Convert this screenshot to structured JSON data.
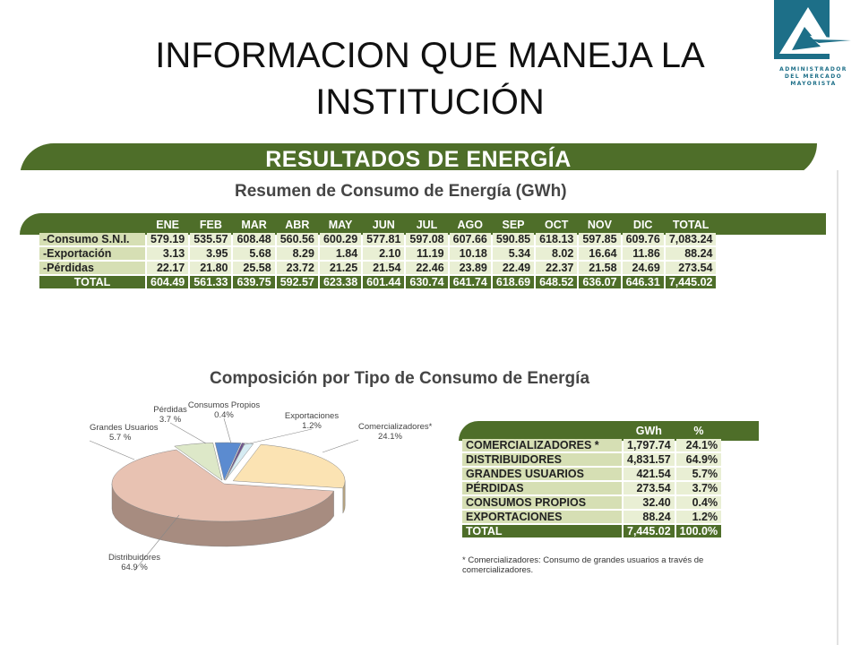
{
  "title": "INFORMACION QUE MANEJA LA INSTITUCIÓN",
  "logo": {
    "lines": [
      "ADMINISTRADOR",
      "DEL MERCADO",
      "MAYORISTA"
    ],
    "colors": {
      "primary": "#1d6f88",
      "accent": "#ffffff"
    }
  },
  "section_title": "RESULTADOS DE ENERGÍA",
  "colors": {
    "banner": "#4e6e29",
    "cell": "#e9efd4",
    "row_label": "#d6dfb4"
  },
  "monthly_table": {
    "subtitle": "Resumen de Consumo de Energía (GWh)",
    "columns": [
      "ENE",
      "FEB",
      "MAR",
      "ABR",
      "MAY",
      "JUN",
      "JUL",
      "AGO",
      "SEP",
      "OCT",
      "NOV",
      "DIC",
      "TOTAL"
    ],
    "rows": [
      {
        "label": "-Consumo S.N.I.",
        "values": [
          "579.19",
          "535.57",
          "608.48",
          "560.56",
          "600.29",
          "577.81",
          "597.08",
          "607.66",
          "590.85",
          "618.13",
          "597.85",
          "609.76",
          "7,083.24"
        ]
      },
      {
        "label": "-Exportación",
        "values": [
          "3.13",
          "3.95",
          "5.68",
          "8.29",
          "1.84",
          "2.10",
          "11.19",
          "10.18",
          "5.34",
          "8.02",
          "16.64",
          "11.86",
          "88.24"
        ]
      },
      {
        "label": "-Pérdidas",
        "values": [
          "22.17",
          "21.80",
          "25.58",
          "23.72",
          "21.25",
          "21.54",
          "22.46",
          "23.89",
          "22.49",
          "22.37",
          "21.58",
          "24.69",
          "273.54"
        ]
      },
      {
        "label": "TOTAL",
        "values": [
          "604.49",
          "561.33",
          "639.75",
          "592.57",
          "623.38",
          "601.44",
          "630.74",
          "641.74",
          "618.69",
          "648.52",
          "636.07",
          "646.31",
          "7,445.02"
        ]
      }
    ]
  },
  "composition": {
    "subtitle": "Composición por Tipo de Consumo de Energía",
    "headers": [
      "GWh",
      "%"
    ],
    "rows": [
      {
        "label": "COMERCIALIZADORES *",
        "gwh": "1,797.74",
        "pct": "24.1%"
      },
      {
        "label": "DISTRIBUIDORES",
        "gwh": "4,831.57",
        "pct": "64.9%"
      },
      {
        "label": "GRANDES USUARIOS",
        "gwh": "421.54",
        "pct": "5.7%"
      },
      {
        "label": "PÉRDIDAS",
        "gwh": "273.54",
        "pct": "3.7%"
      },
      {
        "label": "CONSUMOS PROPIOS",
        "gwh": "32.40",
        "pct": "0.4%"
      },
      {
        "label": "EXPORTACIONES",
        "gwh": "88.24",
        "pct": "1.2%"
      }
    ],
    "total": {
      "label": "TOTAL",
      "gwh": "7,445.02",
      "pct": "100.0%"
    },
    "footnote": "* Comercializadores: Consumo de grandes usuarios a través de comercializadores."
  },
  "chart_data": {
    "type": "pie",
    "title": "Composición por Tipo de Consumo de Energía",
    "slices": [
      {
        "label": "Comercializadores*",
        "value": 24.1,
        "display": "24.1%",
        "color": "#fbe3b3"
      },
      {
        "label": "Distribuidores",
        "value": 64.9,
        "display": "64.9 %",
        "color": "#e8c2b2"
      },
      {
        "label": "Grandes Usuarios",
        "value": 5.7,
        "display": "5.7 %",
        "color": "#dde8c8"
      },
      {
        "label": "Pérdidas",
        "value": 3.7,
        "display": "3.7 %",
        "color": "#5b8bd0"
      },
      {
        "label": "Consumos Propios",
        "value": 0.4,
        "display": "0.4%",
        "color": "#6b4e8e"
      },
      {
        "label": "Exportaciones",
        "value": 1.2,
        "display": "1.2%",
        "color": "#d6ecf3"
      }
    ]
  }
}
